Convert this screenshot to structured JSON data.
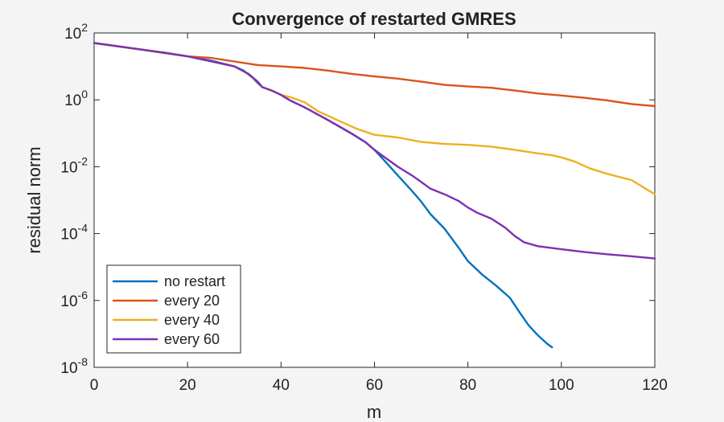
{
  "chart_data": {
    "type": "line",
    "title": "Convergence of restarted GMRES",
    "xlabel": "m",
    "ylabel": "residual norm",
    "xlim": [
      0,
      120
    ],
    "ylim": [
      1e-08,
      100
    ],
    "yscale": "log",
    "grid": false,
    "legend_position": "bottom-left",
    "x_ticks": [
      {
        "value": 0,
        "label": "0"
      },
      {
        "value": 20,
        "label": "20"
      },
      {
        "value": 40,
        "label": "40"
      },
      {
        "value": 60,
        "label": "60"
      },
      {
        "value": 80,
        "label": "80"
      },
      {
        "value": 100,
        "label": "100"
      },
      {
        "value": 120,
        "label": "120"
      }
    ],
    "y_ticks": [
      {
        "value": 100,
        "base": "10",
        "exp": "2"
      },
      {
        "value": 1,
        "base": "10",
        "exp": "0"
      },
      {
        "value": 0.01,
        "base": "10",
        "exp": "-2"
      },
      {
        "value": 0.0001,
        "base": "10",
        "exp": "-4"
      },
      {
        "value": 1e-06,
        "base": "10",
        "exp": "-6"
      },
      {
        "value": 1e-08,
        "base": "10",
        "exp": "-8"
      }
    ],
    "series": [
      {
        "name": "no restart",
        "color": "#0072bd",
        "x": [
          0,
          5,
          10,
          15,
          20,
          25,
          30,
          32,
          34,
          35,
          36,
          38,
          40,
          42,
          45,
          50,
          55,
          58,
          60,
          62,
          65,
          68,
          70,
          72,
          75,
          78,
          80,
          83,
          86,
          89,
          91,
          93,
          95,
          97,
          98
        ],
        "y": [
          50,
          40,
          32,
          26,
          20,
          15,
          10,
          7.5,
          4.5,
          3.2,
          2.4,
          1.9,
          1.4,
          0.95,
          0.6,
          0.25,
          0.1,
          0.055,
          0.032,
          0.016,
          0.0055,
          0.0019,
          0.0009,
          0.00038,
          0.00014,
          3.8e-05,
          1.5e-05,
          6e-06,
          2.8e-06,
          1.2e-06,
          4.5e-07,
          1.8e-07,
          9e-08,
          5e-08,
          4e-08
        ]
      },
      {
        "name": "every 20",
        "color": "#d95319",
        "x": [
          0,
          10,
          20,
          25,
          30,
          35,
          40,
          45,
          50,
          55,
          60,
          65,
          70,
          75,
          80,
          85,
          90,
          95,
          100,
          105,
          110,
          115,
          120
        ],
        "y": [
          50,
          32,
          20,
          18,
          14,
          11,
          10,
          9,
          7.5,
          6,
          5,
          4.3,
          3.5,
          2.8,
          2.5,
          2.3,
          1.9,
          1.55,
          1.35,
          1.15,
          0.95,
          0.75,
          0.65
        ]
      },
      {
        "name": "every 40",
        "color": "#edb120",
        "x": [
          0,
          10,
          20,
          30,
          33,
          35,
          36,
          38,
          40,
          42,
          45,
          48,
          52,
          56,
          60,
          65,
          70,
          75,
          80,
          85,
          90,
          95,
          98,
          100,
          103,
          106,
          110,
          115,
          120
        ],
        "y": [
          50,
          32,
          20,
          10,
          6,
          3.5,
          2.4,
          1.9,
          1.4,
          1.2,
          0.85,
          0.45,
          0.25,
          0.14,
          0.09,
          0.075,
          0.055,
          0.048,
          0.045,
          0.04,
          0.032,
          0.025,
          0.022,
          0.019,
          0.014,
          0.009,
          0.006,
          0.004,
          0.0015
        ]
      },
      {
        "name": "every 60",
        "color": "#7e2fb2",
        "x": [
          0,
          10,
          20,
          30,
          33,
          35,
          36,
          38,
          40,
          42,
          45,
          50,
          55,
          58,
          60,
          62,
          65,
          68,
          70,
          72,
          75,
          78,
          80,
          82,
          85,
          88,
          90,
          92,
          95,
          100,
          105,
          110,
          115,
          120
        ],
        "y": [
          50,
          32,
          20,
          10,
          6,
          3.5,
          2.4,
          1.9,
          1.4,
          0.95,
          0.6,
          0.25,
          0.1,
          0.055,
          0.032,
          0.02,
          0.01,
          0.0055,
          0.0035,
          0.0022,
          0.0015,
          0.00095,
          0.0006,
          0.00042,
          0.00028,
          0.00015,
          8.5e-05,
          5.5e-05,
          4.2e-05,
          3.4e-05,
          2.8e-05,
          2.4e-05,
          2.1e-05,
          1.8e-05
        ]
      }
    ]
  }
}
